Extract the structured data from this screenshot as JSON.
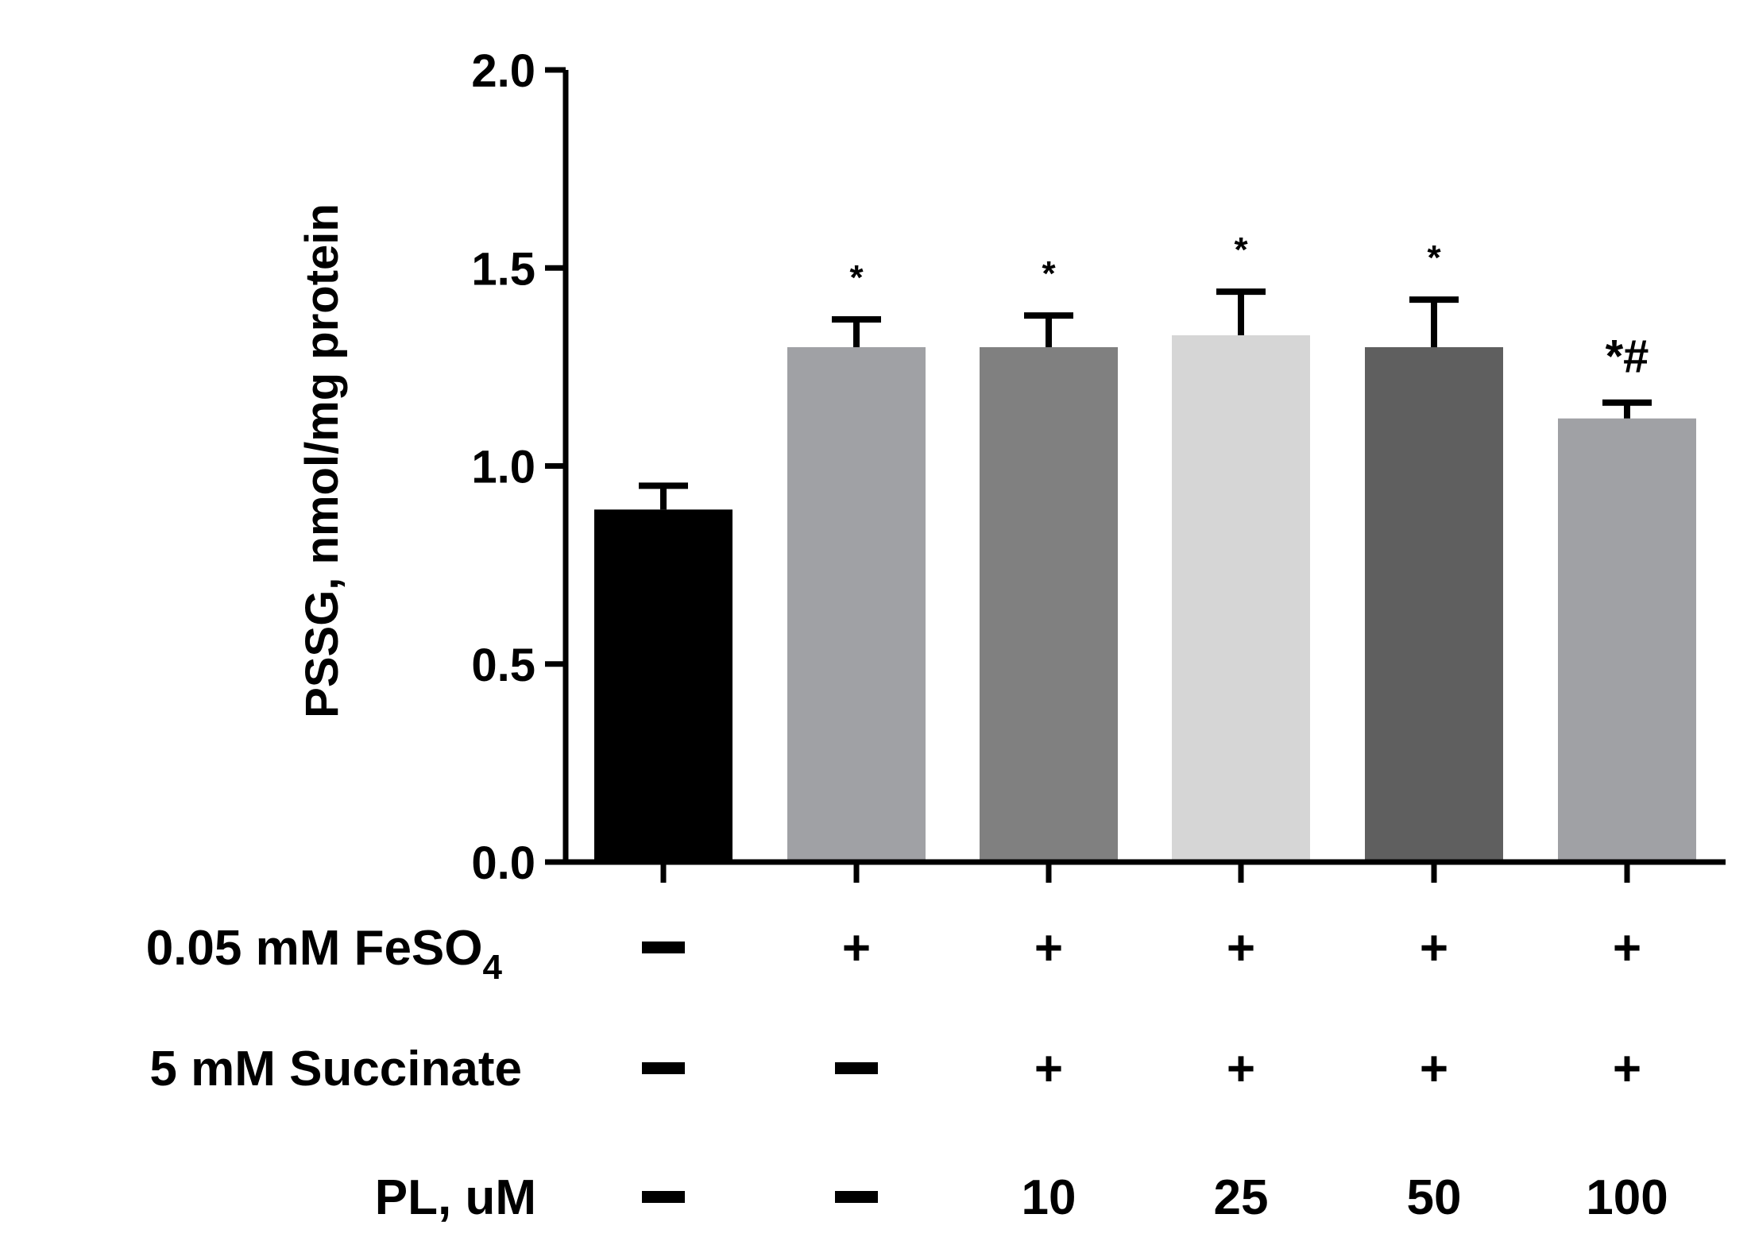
{
  "chart_data": {
    "type": "bar",
    "title": "",
    "ylabel": "PSSG, nmol/mg protein",
    "ylim": [
      0.0,
      2.0
    ],
    "yticks": [
      "0.0",
      "0.5",
      "1.0",
      "1.5",
      "2.0"
    ],
    "values": [
      0.89,
      1.3,
      1.3,
      1.33,
      1.3,
      1.12
    ],
    "errors": [
      0.06,
      0.07,
      0.08,
      0.11,
      0.12,
      0.04
    ],
    "colors": [
      "#000000",
      "#a0a1a5",
      "#808080",
      "#d6d6d6",
      "#5f5f5f",
      "#a0a1a5"
    ],
    "significance": [
      "",
      "*",
      "*",
      "*",
      "*",
      "*#"
    ],
    "conditions": [
      {
        "label": "0.05 mM FeSO",
        "subscript": "4",
        "values": [
          "—",
          "+",
          "+",
          "+",
          "+",
          "+"
        ]
      },
      {
        "label": "5 mM Succinate",
        "values": [
          "—",
          "—",
          "+",
          "+",
          "+",
          "+"
        ]
      },
      {
        "label": "PL, uM",
        "values": [
          "—",
          "—",
          "10",
          "25",
          "50",
          "100"
        ]
      }
    ]
  }
}
